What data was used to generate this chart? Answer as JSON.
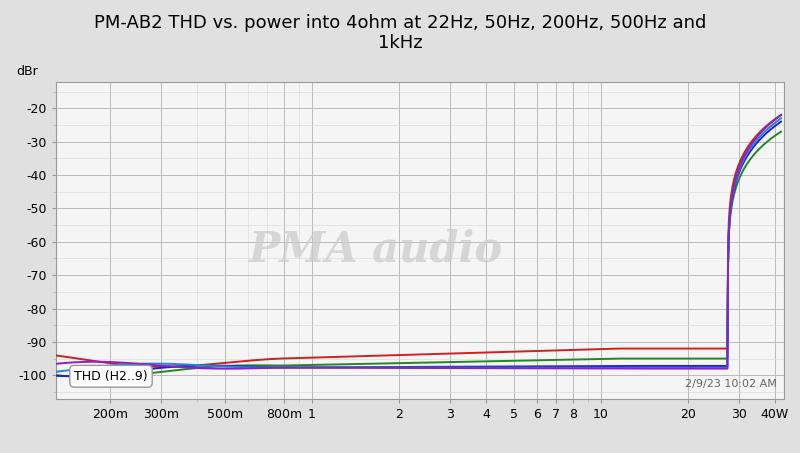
{
  "title": "PM-AB2 THD vs. power into 4ohm at 22Hz, 50Hz, 200Hz, 500Hz and\n1kHz",
  "ylabel": "dBr",
  "xlabel_ticks": [
    "200m",
    "300m",
    "500m",
    "800m",
    "1",
    "2",
    "3",
    "4",
    "5",
    "6",
    "7",
    "8",
    "10",
    "20",
    "30",
    "40W"
  ],
  "xlabel_vals": [
    0.2,
    0.3,
    0.5,
    0.8,
    1,
    2,
    3,
    4,
    5,
    6,
    7,
    8,
    10,
    20,
    30,
    40
  ],
  "ylim": [
    -107,
    -12
  ],
  "yticks": [
    -100,
    -90,
    -80,
    -70,
    -60,
    -50,
    -40,
    -30,
    -20
  ],
  "watermark": "PMA audio",
  "timestamp": "2/9/23 10:02 AM",
  "legend_text": "THD (H2..9)",
  "fig_bg": "#e0e0e0",
  "plot_bg": "#f5f5f5",
  "grid_major_color": "#bbbbbb",
  "grid_minor_color": "#d8d8d8",
  "colors": {
    "22hz": "#cc2222",
    "50hz": "#228822",
    "200hz": "#2222cc",
    "500hz": "#2288cc",
    "1khz": "#8822cc"
  },
  "clip_x": 27.5,
  "xlim": [
    0.13,
    43
  ]
}
